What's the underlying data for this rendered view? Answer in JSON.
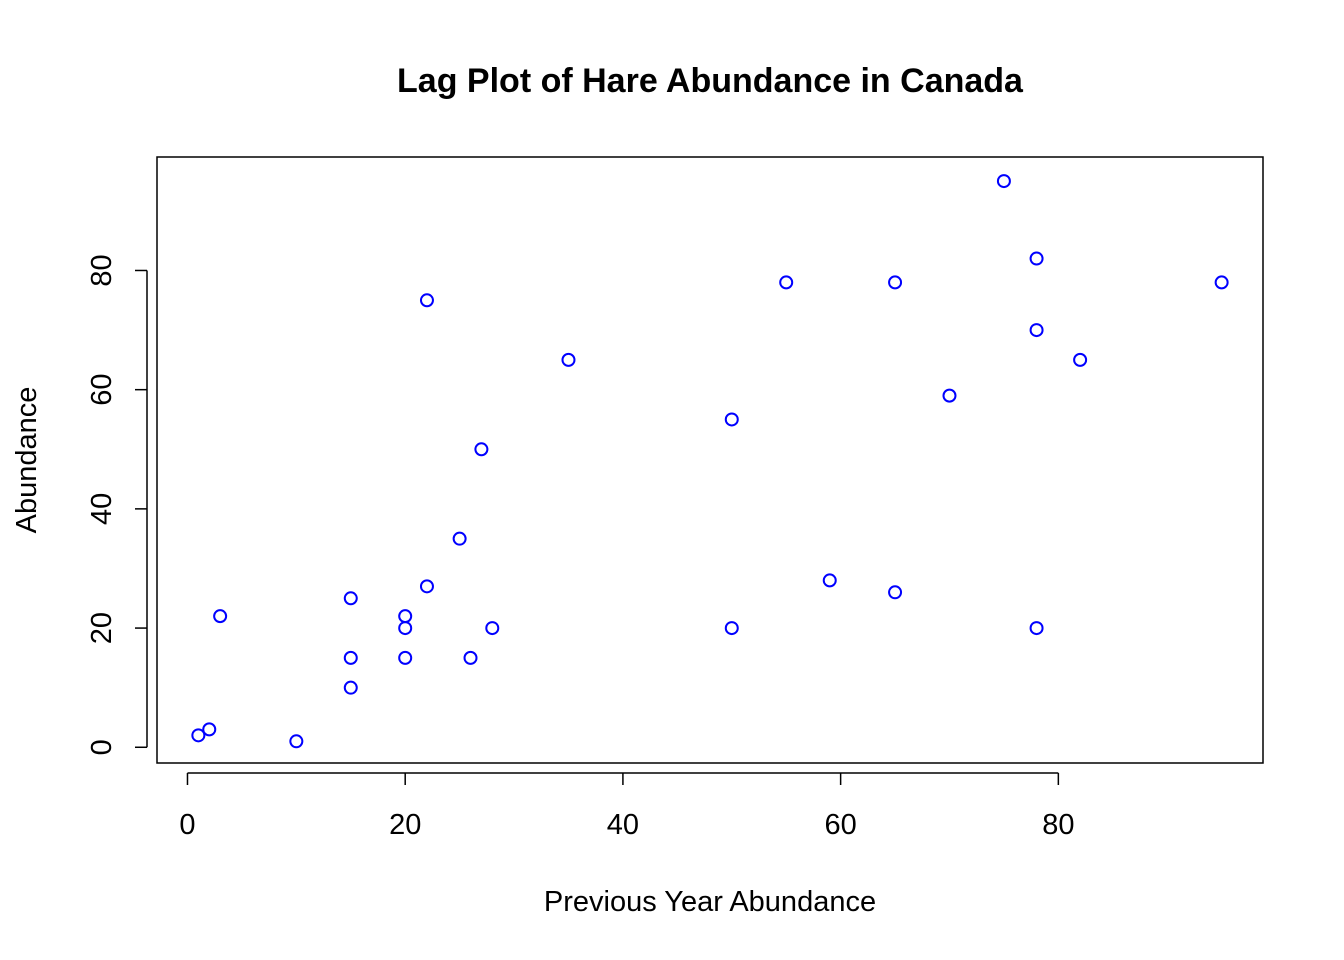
{
  "chart_data": {
    "type": "scatter",
    "title": "Lag Plot of Hare Abundance in Canada",
    "xlabel": "Previous Year Abundance",
    "ylabel": "Abundance",
    "xlim": [
      -2.8,
      98.8
    ],
    "ylim": [
      -2.64,
      99.04
    ],
    "xticks": [
      0,
      20,
      40,
      60,
      80
    ],
    "yticks": [
      0,
      20,
      40,
      60,
      80
    ],
    "grid": false,
    "point_color": "#0000ff",
    "points": [
      {
        "x": 1,
        "y": 2
      },
      {
        "x": 2,
        "y": 3
      },
      {
        "x": 3,
        "y": 22
      },
      {
        "x": 10,
        "y": 1
      },
      {
        "x": 15,
        "y": 25
      },
      {
        "x": 15,
        "y": 15
      },
      {
        "x": 15,
        "y": 10
      },
      {
        "x": 20,
        "y": 22
      },
      {
        "x": 20,
        "y": 20
      },
      {
        "x": 20,
        "y": 15
      },
      {
        "x": 22,
        "y": 75
      },
      {
        "x": 22,
        "y": 27
      },
      {
        "x": 25,
        "y": 35
      },
      {
        "x": 26,
        "y": 15
      },
      {
        "x": 27,
        "y": 50
      },
      {
        "x": 28,
        "y": 20
      },
      {
        "x": 35,
        "y": 65
      },
      {
        "x": 50,
        "y": 55
      },
      {
        "x": 50,
        "y": 20
      },
      {
        "x": 55,
        "y": 78
      },
      {
        "x": 59,
        "y": 28
      },
      {
        "x": 65,
        "y": 78
      },
      {
        "x": 65,
        "y": 26
      },
      {
        "x": 70,
        "y": 59
      },
      {
        "x": 75,
        "y": 95
      },
      {
        "x": 78,
        "y": 82
      },
      {
        "x": 78,
        "y": 70
      },
      {
        "x": 78,
        "y": 20
      },
      {
        "x": 82,
        "y": 65
      },
      {
        "x": 95,
        "y": 78
      }
    ]
  }
}
